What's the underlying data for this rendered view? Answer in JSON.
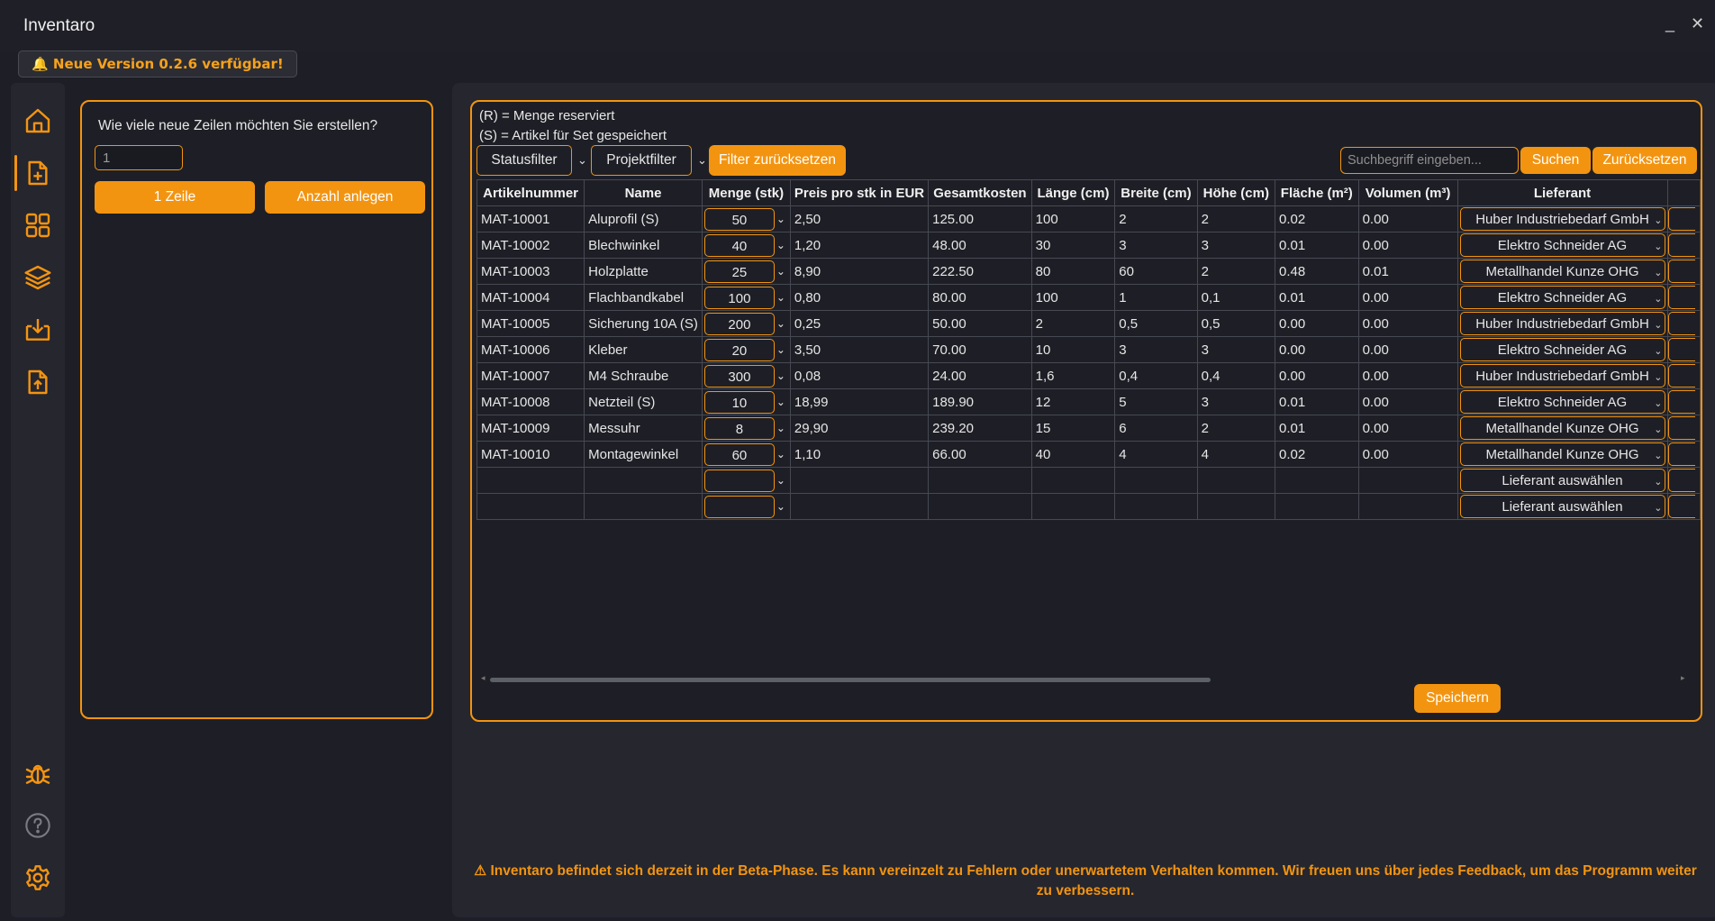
{
  "app": {
    "title": "Inventaro",
    "minimize": "_",
    "close": "✕"
  },
  "banner": {
    "text": "Neue Version 0.2.6 verfügbar!"
  },
  "sidebar": {
    "items": [
      {
        "name": "home",
        "icon": "home-icon"
      },
      {
        "name": "add-file",
        "icon": "file-plus-icon"
      },
      {
        "name": "dashboard",
        "icon": "grid-icon"
      },
      {
        "name": "layers",
        "icon": "layers-icon"
      },
      {
        "name": "import",
        "icon": "download-icon"
      },
      {
        "name": "export",
        "icon": "upload-icon"
      }
    ],
    "bottom": [
      {
        "name": "bug-report",
        "icon": "bug-icon"
      },
      {
        "name": "help",
        "icon": "help-icon"
      },
      {
        "name": "settings",
        "icon": "gear-icon"
      }
    ]
  },
  "create": {
    "question": "Wie viele neue Zeilen möchten Sie erstellen?",
    "count_value": "1",
    "one_row_label": "1 Zeile",
    "create_label": "Anzahl anlegen"
  },
  "legend": {
    "reserved": "(R) = Menge reserviert",
    "set": "(S) = Artikel für Set gespeichert"
  },
  "filters": {
    "status": "Statusfilter",
    "project": "Projektfilter",
    "reset": "Filter zurücksetzen",
    "search_placeholder": "Suchbegriff eingeben...",
    "search_btn": "Suchen",
    "reset_search": "Zurücksetzen"
  },
  "table": {
    "headers": [
      "Artikelnummer",
      "Name",
      "Menge (stk)",
      "Preis pro stk in EUR",
      "Gesamtkosten",
      "Länge (cm)",
      "Breite (cm)",
      "Höhe (cm)",
      "Fläche (m²)",
      "Volumen (m³)",
      "Lieferant"
    ],
    "rows": [
      [
        "MAT-10001",
        "Aluprofil (S)",
        "50",
        "2,50",
        "125.00",
        "100",
        "2",
        "2",
        "0.02",
        "0.00",
        "Huber Industriebedarf GmbH"
      ],
      [
        "MAT-10002",
        "Blechwinkel",
        "40",
        "1,20",
        "48.00",
        "30",
        "3",
        "3",
        "0.01",
        "0.00",
        "Elektro Schneider AG"
      ],
      [
        "MAT-10003",
        "Holzplatte",
        "25",
        "8,90",
        "222.50",
        "80",
        "60",
        "2",
        "0.48",
        "0.01",
        "Metallhandel Kunze OHG"
      ],
      [
        "MAT-10004",
        "Flachbandkabel",
        "100",
        "0,80",
        "80.00",
        "100",
        "1",
        "0,1",
        "0.01",
        "0.00",
        "Elektro Schneider AG"
      ],
      [
        "MAT-10005",
        "Sicherung 10A (S)",
        "200",
        "0,25",
        "50.00",
        "2",
        "0,5",
        "0,5",
        "0.00",
        "0.00",
        "Huber Industriebedarf GmbH"
      ],
      [
        "MAT-10006",
        "Kleber",
        "20",
        "3,50",
        "70.00",
        "10",
        "3",
        "3",
        "0.00",
        "0.00",
        "Elektro Schneider AG"
      ],
      [
        "MAT-10007",
        "M4 Schraube",
        "300",
        "0,08",
        "24.00",
        "1,6",
        "0,4",
        "0,4",
        "0.00",
        "0.00",
        "Huber Industriebedarf GmbH"
      ],
      [
        "MAT-10008",
        "Netzteil (S)",
        "10",
        "18,99",
        "189.90",
        "12",
        "5",
        "3",
        "0.01",
        "0.00",
        "Elektro Schneider AG"
      ],
      [
        "MAT-10009",
        "Messuhr",
        "8",
        "29,90",
        "239.20",
        "15",
        "6",
        "2",
        "0.01",
        "0.00",
        "Metallhandel Kunze OHG"
      ],
      [
        "MAT-10010",
        "Montagewinkel",
        "60",
        "1,10",
        "66.00",
        "40",
        "4",
        "4",
        "0.02",
        "0.00",
        "Metallhandel Kunze OHG"
      ],
      [
        "",
        "",
        "",
        "",
        "",
        "",
        "",
        "",
        "",
        "",
        "Lieferant auswählen"
      ],
      [
        "",
        "",
        "",
        "",
        "",
        "",
        "",
        "",
        "",
        "",
        "Lieferant auswählen"
      ]
    ]
  },
  "save_label": "Speichern",
  "beta_notice": "Inventaro befindet sich derzeit in der Beta-Phase. Es kann vereinzelt zu Fehlern oder unerwartetem Verhalten kommen. Wir freuen uns über jedes Feedback, um das Programm weiter zu verbessern.",
  "colors": {
    "accent": "#f39410",
    "background": "#1e1f26",
    "panel": "#25262e"
  }
}
